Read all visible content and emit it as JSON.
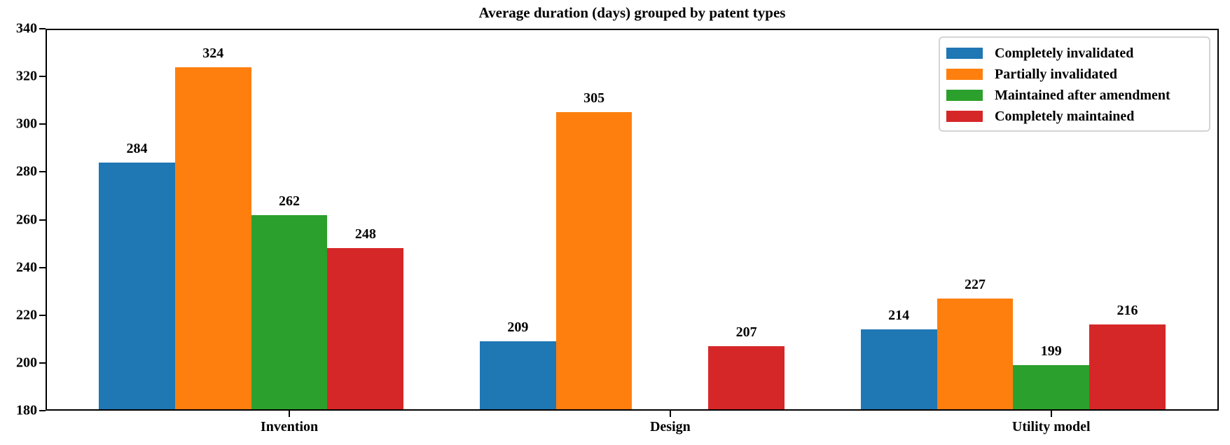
{
  "chart_data": {
    "type": "bar",
    "title": "Average duration (days) grouped by patent types",
    "categories": [
      "Invention",
      "Design",
      "Utility model"
    ],
    "series": [
      {
        "name": "Completely invalidated",
        "color": "#1f77b4",
        "values": [
          284,
          209,
          214
        ]
      },
      {
        "name": "Partially invalidated",
        "color": "#ff7f0e",
        "values": [
          324,
          305,
          227
        ]
      },
      {
        "name": "Maintained after amendment",
        "color": "#2ca02c",
        "values": [
          262,
          null,
          199
        ]
      },
      {
        "name": "Completely maintained",
        "color": "#d62728",
        "values": [
          248,
          207,
          216
        ]
      }
    ],
    "xlabel": "",
    "ylabel": "",
    "ylim": [
      180,
      340
    ],
    "yticks": [
      180,
      200,
      220,
      240,
      260,
      280,
      300,
      320,
      340
    ],
    "grid": false,
    "legend_position": "upper right",
    "bar_value_labels": true
  },
  "colors": {
    "axis": "#000000",
    "background": "#ffffff",
    "legend_border": "#d4d4d4"
  }
}
